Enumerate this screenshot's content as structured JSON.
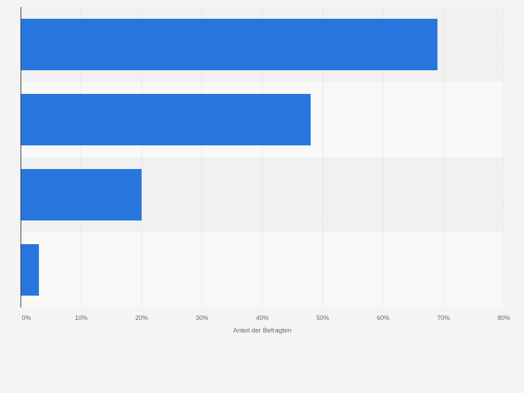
{
  "chart_data": {
    "type": "bar",
    "orientation": "horizontal",
    "categories": [
      "",
      "",
      "",
      ""
    ],
    "values": [
      69,
      48,
      20,
      3
    ],
    "xlabel": "Anteil der Befragten",
    "ylabel": "",
    "xlim": [
      0,
      80
    ],
    "ticks": [
      0,
      10,
      20,
      30,
      40,
      50,
      60,
      70,
      80
    ],
    "tick_labels": [
      "0%",
      "10%",
      "20%",
      "30%",
      "40%",
      "50%",
      "60%",
      "70%",
      "80%"
    ],
    "grid": true,
    "colors": {
      "bar": "#2876dd",
      "band_dark": "#f1f1f1",
      "band_light": "#f8f8f8",
      "grid": "#dcdcdc",
      "axis": "#333333",
      "tick_text": "#666666",
      "label_text": "#666666",
      "page_bg": "#f4f4f4"
    }
  }
}
